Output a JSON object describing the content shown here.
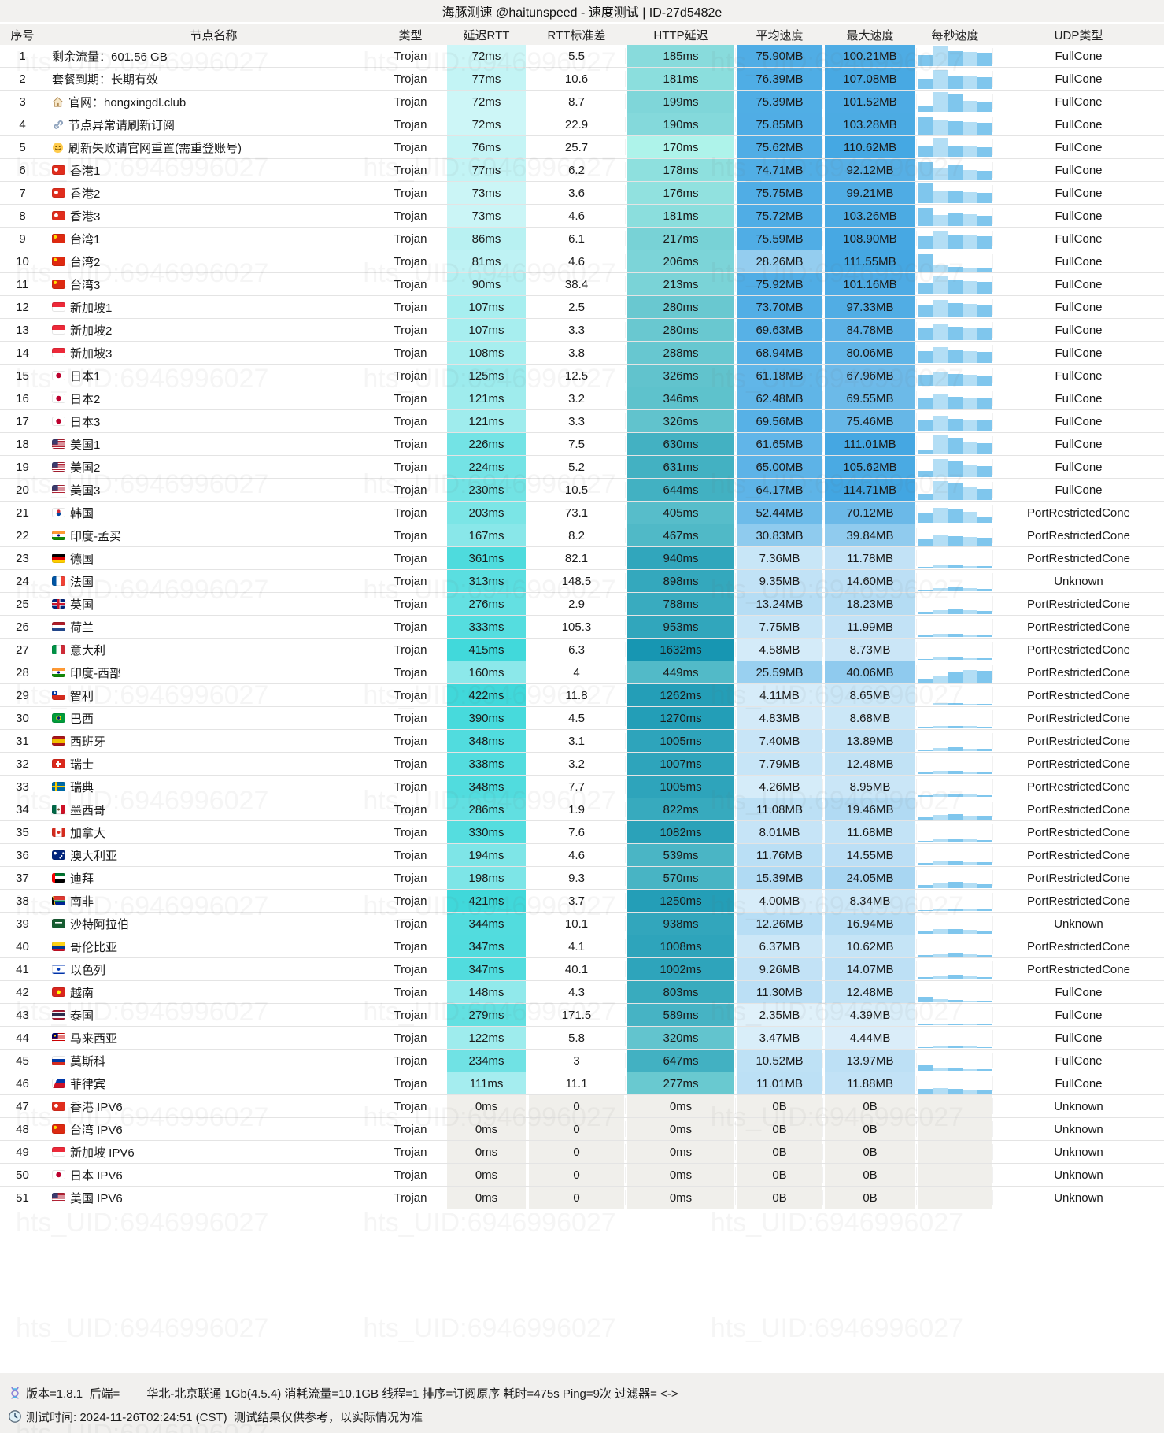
{
  "title": "海豚测速 @haitunspeed - 速度测试 | ID-27d5482e",
  "watermark_text": "hts_UID:6946996027",
  "columns": [
    "序号",
    "节点名称",
    "类型",
    "延迟RTT",
    "RTT标准差",
    "HTTP延迟",
    "平均速度",
    "最大速度",
    "每秒速度",
    "UDP类型"
  ],
  "colors": {
    "rtt_light": "#d9f8f9",
    "rtt_deep": "#3ed8da",
    "http_light": "#aef3ea",
    "http_deep": "#1796b2",
    "avg_deep": "#4fade5",
    "max_deep": "#42a6e2",
    "zero_bg": "#f0efeb",
    "bar_main": "#7fc6ed",
    "bar_alt": "#b3def5"
  },
  "scales": {
    "rtt_min": 70,
    "rtt_max": 430,
    "http_min": 170,
    "http_max": 1632,
    "avg_max": 76.39,
    "max_max": 114.71
  },
  "rows": [
    {
      "i": 1,
      "name": "剩余流量：601.56 GB",
      "type": "Trojan",
      "rtt": 72,
      "std": "5.5",
      "http": 185,
      "avg": 75.9,
      "max": 100.21,
      "udp": "FullCone",
      "bars": [
        0.55,
        0.95,
        0.72,
        0.7,
        0.66
      ]
    },
    {
      "i": 2,
      "name": "套餐到期：长期有效",
      "type": "Trojan",
      "rtt": 77,
      "std": "10.6",
      "http": 181,
      "avg": 76.39,
      "max": 107.08,
      "udp": "FullCone",
      "bars": [
        0.5,
        0.92,
        0.66,
        0.6,
        0.58
      ]
    },
    {
      "i": 3,
      "name": "官网：hongxingdl.club",
      "icon": "home",
      "type": "Trojan",
      "rtt": 72,
      "std": "8.7",
      "http": 199,
      "avg": 75.39,
      "max": 101.52,
      "udp": "FullCone",
      "bars": [
        0.3,
        0.95,
        0.88,
        0.55,
        0.5
      ]
    },
    {
      "i": 4,
      "name": "节点异常请刷新订阅",
      "icon": "link",
      "type": "Trojan",
      "rtt": 72,
      "std": "22.9",
      "http": 190,
      "avg": 75.85,
      "max": 103.28,
      "udp": "FullCone",
      "bars": [
        0.85,
        0.75,
        0.64,
        0.6,
        0.58
      ]
    },
    {
      "i": 5,
      "name": "刷新失败请官网重置(需重登账号)",
      "icon": "smile",
      "type": "Trojan",
      "rtt": 76,
      "std": "25.7",
      "http": 170,
      "avg": 75.62,
      "max": 110.62,
      "udp": "FullCone",
      "bars": [
        0.52,
        0.95,
        0.56,
        0.52,
        0.5
      ]
    },
    {
      "i": 6,
      "name": "香港1",
      "flag": "hk",
      "type": "Trojan",
      "rtt": 77,
      "std": "6.2",
      "http": 178,
      "avg": 74.71,
      "max": 92.12,
      "udp": "FullCone",
      "bars": [
        0.9,
        0.62,
        0.74,
        0.5,
        0.46
      ]
    },
    {
      "i": 7,
      "name": "香港2",
      "flag": "hk",
      "type": "Trojan",
      "rtt": 73,
      "std": "3.6",
      "http": 176,
      "avg": 75.75,
      "max": 99.21,
      "udp": "FullCone",
      "bars": [
        1.0,
        0.56,
        0.56,
        0.54,
        0.5
      ]
    },
    {
      "i": 8,
      "name": "香港3",
      "flag": "hk",
      "type": "Trojan",
      "rtt": 73,
      "std": "4.6",
      "http": 181,
      "avg": 75.72,
      "max": 103.26,
      "udp": "FullCone",
      "bars": [
        0.88,
        0.52,
        0.6,
        0.56,
        0.5
      ]
    },
    {
      "i": 9,
      "name": "台湾1",
      "flag": "cn",
      "type": "Trojan",
      "rtt": 86,
      "std": "6.1",
      "http": 217,
      "avg": 75.59,
      "max": 108.9,
      "udp": "FullCone",
      "bars": [
        0.6,
        0.9,
        0.7,
        0.64,
        0.6
      ]
    },
    {
      "i": 10,
      "name": "台湾2",
      "flag": "cn",
      "type": "Trojan",
      "rtt": 81,
      "std": "4.6",
      "http": 206,
      "avg": 28.26,
      "max": 111.55,
      "udp": "FullCone",
      "bars": [
        0.85,
        0.3,
        0.22,
        0.2,
        0.18
      ]
    },
    {
      "i": 11,
      "name": "台湾3",
      "flag": "cn",
      "type": "Trojan",
      "rtt": 90,
      "std": "38.4",
      "http": 213,
      "avg": 75.92,
      "max": 101.16,
      "udp": "FullCone",
      "bars": [
        0.55,
        0.88,
        0.72,
        0.66,
        0.6
      ]
    },
    {
      "i": 12,
      "name": "新加坡1",
      "flag": "sg",
      "type": "Trojan",
      "rtt": 107,
      "std": "2.5",
      "http": 280,
      "avg": 73.7,
      "max": 97.33,
      "udp": "FullCone",
      "bars": [
        0.62,
        0.86,
        0.68,
        0.64,
        0.6
      ]
    },
    {
      "i": 13,
      "name": "新加坡2",
      "flag": "sg",
      "type": "Trojan",
      "rtt": 107,
      "std": "3.3",
      "http": 280,
      "avg": 69.63,
      "max": 84.78,
      "udp": "FullCone",
      "bars": [
        0.6,
        0.82,
        0.64,
        0.6,
        0.56
      ]
    },
    {
      "i": 14,
      "name": "新加坡3",
      "flag": "sg",
      "type": "Trojan",
      "rtt": 108,
      "std": "3.8",
      "http": 288,
      "avg": 68.94,
      "max": 80.06,
      "udp": "FullCone",
      "bars": [
        0.58,
        0.78,
        0.62,
        0.58,
        0.54
      ]
    },
    {
      "i": 15,
      "name": "日本1",
      "flag": "jp",
      "type": "Trojan",
      "rtt": 125,
      "std": "12.5",
      "http": 326,
      "avg": 61.18,
      "max": 67.96,
      "udp": "FullCone",
      "bars": [
        0.52,
        0.7,
        0.58,
        0.52,
        0.48
      ]
    },
    {
      "i": 16,
      "name": "日本2",
      "flag": "jp",
      "type": "Trojan",
      "rtt": 121,
      "std": "3.2",
      "http": 346,
      "avg": 62.48,
      "max": 69.55,
      "udp": "FullCone",
      "bars": [
        0.54,
        0.72,
        0.58,
        0.54,
        0.5
      ]
    },
    {
      "i": 17,
      "name": "日本3",
      "flag": "jp",
      "type": "Trojan",
      "rtt": 121,
      "std": "3.3",
      "http": 326,
      "avg": 69.56,
      "max": 75.46,
      "udp": "FullCone",
      "bars": [
        0.56,
        0.76,
        0.62,
        0.56,
        0.52
      ]
    },
    {
      "i": 18,
      "name": "美国1",
      "flag": "us",
      "type": "Trojan",
      "rtt": 226,
      "std": "7.5",
      "http": 630,
      "avg": 61.65,
      "max": 111.01,
      "udp": "FullCone",
      "bars": [
        0.25,
        0.95,
        0.8,
        0.6,
        0.55
      ]
    },
    {
      "i": 19,
      "name": "美国2",
      "flag": "us",
      "type": "Trojan",
      "rtt": 224,
      "std": "5.2",
      "http": 631,
      "avg": 65.0,
      "max": 105.62,
      "udp": "FullCone",
      "bars": [
        0.3,
        0.9,
        0.78,
        0.6,
        0.52
      ]
    },
    {
      "i": 20,
      "name": "美国3",
      "flag": "us",
      "type": "Trojan",
      "rtt": 230,
      "std": "10.5",
      "http": 644,
      "avg": 64.17,
      "max": 114.71,
      "udp": "FullCone",
      "bars": [
        0.28,
        0.92,
        0.8,
        0.62,
        0.55
      ]
    },
    {
      "i": 21,
      "name": "韩国",
      "flag": "kr",
      "type": "Trojan",
      "rtt": 203,
      "std": "73.1",
      "http": 405,
      "avg": 52.44,
      "max": 70.12,
      "udp": "PortRestrictedCone",
      "bars": [
        0.5,
        0.72,
        0.64,
        0.55,
        0.3
      ]
    },
    {
      "i": 22,
      "name": "印度-孟买",
      "flag": "in",
      "type": "Trojan",
      "rtt": 167,
      "std": "8.2",
      "http": 467,
      "avg": 30.83,
      "max": 39.84,
      "udp": "PortRestrictedCone",
      "bars": [
        0.3,
        0.5,
        0.48,
        0.44,
        0.4
      ]
    },
    {
      "i": 23,
      "name": "德国",
      "flag": "de",
      "type": "Trojan",
      "rtt": 361,
      "std": "82.1",
      "http": 940,
      "avg": 7.36,
      "max": 11.78,
      "udp": "PortRestrictedCone",
      "bars": [
        0.08,
        0.14,
        0.15,
        0.12,
        0.1
      ]
    },
    {
      "i": 24,
      "name": "法国",
      "flag": "fr",
      "type": "Trojan",
      "rtt": 313,
      "std": "148.5",
      "http": 898,
      "avg": 9.35,
      "max": 14.6,
      "udp": "Unknown",
      "bars": [
        0.08,
        0.16,
        0.18,
        0.14,
        0.1
      ]
    },
    {
      "i": 25,
      "name": "英国",
      "flag": "gb",
      "type": "Trojan",
      "rtt": 276,
      "std": "2.9",
      "http": 788,
      "avg": 13.24,
      "max": 18.23,
      "udp": "PortRestrictedCone",
      "bars": [
        0.12,
        0.2,
        0.22,
        0.18,
        0.15
      ]
    },
    {
      "i": 26,
      "name": "荷兰",
      "flag": "nl",
      "type": "Trojan",
      "rtt": 333,
      "std": "105.3",
      "http": 953,
      "avg": 7.75,
      "max": 11.99,
      "udp": "PortRestrictedCone",
      "bars": [
        0.08,
        0.14,
        0.16,
        0.12,
        0.1
      ]
    },
    {
      "i": 27,
      "name": "意大利",
      "flag": "it",
      "type": "Trojan",
      "rtt": 415,
      "std": "6.3",
      "http": 1632,
      "avg": 4.58,
      "max": 8.73,
      "udp": "PortRestrictedCone",
      "bars": [
        0.05,
        0.1,
        0.11,
        0.09,
        0.07
      ]
    },
    {
      "i": 28,
      "name": "印度-西部",
      "flag": "in",
      "type": "Trojan",
      "rtt": 160,
      "std": "4",
      "http": 449,
      "avg": 25.59,
      "max": 40.06,
      "udp": "PortRestrictedCone",
      "bars": [
        0.15,
        0.3,
        0.55,
        0.62,
        0.58
      ]
    },
    {
      "i": 29,
      "name": "智利",
      "flag": "cl",
      "type": "Trojan",
      "rtt": 422,
      "std": "11.8",
      "http": 1262,
      "avg": 4.11,
      "max": 8.65,
      "udp": "PortRestrictedCone",
      "bars": [
        0.05,
        0.1,
        0.1,
        0.09,
        0.07
      ]
    },
    {
      "i": 30,
      "name": "巴西",
      "flag": "br",
      "type": "Trojan",
      "rtt": 390,
      "std": "4.5",
      "http": 1270,
      "avg": 4.83,
      "max": 8.68,
      "udp": "PortRestrictedCone",
      "bars": [
        0.06,
        0.11,
        0.12,
        0.1,
        0.08
      ]
    },
    {
      "i": 31,
      "name": "西班牙",
      "flag": "es",
      "type": "Trojan",
      "rtt": 348,
      "std": "3.1",
      "http": 1005,
      "avg": 7.4,
      "max": 13.89,
      "udp": "PortRestrictedCone",
      "bars": [
        0.08,
        0.15,
        0.18,
        0.13,
        0.1
      ]
    },
    {
      "i": 32,
      "name": "瑞士",
      "flag": "ch",
      "type": "Trojan",
      "rtt": 338,
      "std": "3.2",
      "http": 1007,
      "avg": 7.79,
      "max": 12.48,
      "udp": "PortRestrictedCone",
      "bars": [
        0.08,
        0.16,
        0.17,
        0.13,
        0.1
      ]
    },
    {
      "i": 33,
      "name": "瑞典",
      "flag": "se",
      "type": "Trojan",
      "rtt": 348,
      "std": "7.7",
      "http": 1005,
      "avg": 4.26,
      "max": 8.95,
      "udp": "PortRestrictedCone",
      "bars": [
        0.06,
        0.11,
        0.12,
        0.1,
        0.08
      ]
    },
    {
      "i": 34,
      "name": "墨西哥",
      "flag": "mx",
      "type": "Trojan",
      "rtt": 286,
      "std": "1.9",
      "http": 822,
      "avg": 11.08,
      "max": 19.46,
      "udp": "PortRestrictedCone",
      "bars": [
        0.1,
        0.22,
        0.26,
        0.2,
        0.15
      ]
    },
    {
      "i": 35,
      "name": "加拿大",
      "flag": "ca",
      "type": "Trojan",
      "rtt": 330,
      "std": "7.6",
      "http": 1082,
      "avg": 8.01,
      "max": 11.68,
      "udp": "PortRestrictedCone",
      "bars": [
        0.08,
        0.16,
        0.18,
        0.14,
        0.11
      ]
    },
    {
      "i": 36,
      "name": "澳大利亚",
      "flag": "au",
      "type": "Trojan",
      "rtt": 194,
      "std": "4.6",
      "http": 539,
      "avg": 11.76,
      "max": 14.55,
      "udp": "PortRestrictedCone",
      "bars": [
        0.12,
        0.2,
        0.18,
        0.16,
        0.14
      ]
    },
    {
      "i": 37,
      "name": "迪拜",
      "flag": "ae",
      "type": "Trojan",
      "rtt": 198,
      "std": "9.3",
      "http": 570,
      "avg": 15.39,
      "max": 24.05,
      "udp": "PortRestrictedCone",
      "bars": [
        0.14,
        0.26,
        0.3,
        0.24,
        0.2
      ]
    },
    {
      "i": 38,
      "name": "南非",
      "flag": "za",
      "type": "Trojan",
      "rtt": 421,
      "std": "3.7",
      "http": 1250,
      "avg": 4.0,
      "max": 8.34,
      "udp": "PortRestrictedCone",
      "bars": [
        0.05,
        0.1,
        0.11,
        0.08,
        0.06
      ]
    },
    {
      "i": 39,
      "name": "沙特阿拉伯",
      "flag": "sa",
      "type": "Trojan",
      "rtt": 344,
      "std": "10.1",
      "http": 938,
      "avg": 12.26,
      "max": 16.94,
      "udp": "Unknown",
      "bars": [
        0.12,
        0.22,
        0.24,
        0.2,
        0.16
      ]
    },
    {
      "i": 40,
      "name": "哥伦比亚",
      "flag": "co",
      "type": "Trojan",
      "rtt": 347,
      "std": "4.1",
      "http": 1008,
      "avg": 6.37,
      "max": 10.62,
      "udp": "PortRestrictedCone",
      "bars": [
        0.07,
        0.13,
        0.15,
        0.11,
        0.09
      ]
    },
    {
      "i": 41,
      "name": "以色列",
      "flag": "il",
      "type": "Trojan",
      "rtt": 347,
      "std": "40.1",
      "http": 1002,
      "avg": 9.26,
      "max": 14.07,
      "udp": "PortRestrictedCone",
      "bars": [
        0.1,
        0.2,
        0.22,
        0.17,
        0.13
      ]
    },
    {
      "i": 42,
      "name": "越南",
      "flag": "vn",
      "type": "Trojan",
      "rtt": 148,
      "std": "4.3",
      "http": 803,
      "avg": 11.3,
      "max": 12.48,
      "udp": "FullCone",
      "bars": [
        0.28,
        0.14,
        0.1,
        0.09,
        0.08
      ]
    },
    {
      "i": 43,
      "name": "泰国",
      "flag": "th",
      "type": "Trojan",
      "rtt": 279,
      "std": "171.5",
      "http": 589,
      "avg": 2.35,
      "max": 4.39,
      "udp": "FullCone",
      "bars": [
        0.03,
        0.06,
        0.07,
        0.05,
        0.04
      ]
    },
    {
      "i": 44,
      "name": "马来西亚",
      "flag": "my",
      "type": "Trojan",
      "rtt": 122,
      "std": "5.8",
      "http": 320,
      "avg": 3.47,
      "max": 4.44,
      "udp": "FullCone",
      "bars": [
        0.04,
        0.08,
        0.09,
        0.07,
        0.05
      ]
    },
    {
      "i": 45,
      "name": "莫斯科",
      "flag": "ru",
      "type": "Trojan",
      "rtt": 234,
      "std": "3",
      "http": 647,
      "avg": 10.52,
      "max": 13.97,
      "udp": "FullCone",
      "bars": [
        0.3,
        0.16,
        0.1,
        0.08,
        0.07
      ]
    },
    {
      "i": 46,
      "name": "菲律宾",
      "flag": "ph",
      "type": "Trojan",
      "rtt": 111,
      "std": "11.1",
      "http": 277,
      "avg": 11.01,
      "max": 11.88,
      "udp": "FullCone",
      "bars": [
        0.22,
        0.26,
        0.24,
        0.2,
        0.16
      ]
    },
    {
      "i": 47,
      "name": "香港 IPV6",
      "flag": "hk",
      "type": "Trojan",
      "rtt": 0,
      "std": "0",
      "http": 0,
      "avg": 0,
      "max": 0,
      "udp": "Unknown",
      "bars": []
    },
    {
      "i": 48,
      "name": "台湾 IPV6",
      "flag": "cn",
      "type": "Trojan",
      "rtt": 0,
      "std": "0",
      "http": 0,
      "avg": 0,
      "max": 0,
      "udp": "Unknown",
      "bars": []
    },
    {
      "i": 49,
      "name": "新加坡 IPV6",
      "flag": "sg",
      "type": "Trojan",
      "rtt": 0,
      "std": "0",
      "http": 0,
      "avg": 0,
      "max": 0,
      "udp": "Unknown",
      "bars": []
    },
    {
      "i": 50,
      "name": "日本 IPV6",
      "flag": "jp",
      "type": "Trojan",
      "rtt": 0,
      "std": "0",
      "http": 0,
      "avg": 0,
      "max": 0,
      "udp": "Unknown",
      "bars": []
    },
    {
      "i": 51,
      "name": "美国 IPV6",
      "flag": "us",
      "type": "Trojan",
      "rtt": 0,
      "std": "0",
      "http": 0,
      "avg": 0,
      "max": 0,
      "udp": "Unknown",
      "bars": []
    }
  ],
  "footer": {
    "line1": "版本=1.8.1  后端=　　 华北-北京联通 1Gb(4.5.4) 消耗流量=10.1GB 线程=1 排序=订阅原序 耗时=475s Ping=9次 过滤器= <->",
    "line2": "测试时间: 2024-11-26T02:24:51 (CST)  测试结果仅供参考，以实际情况为准"
  }
}
